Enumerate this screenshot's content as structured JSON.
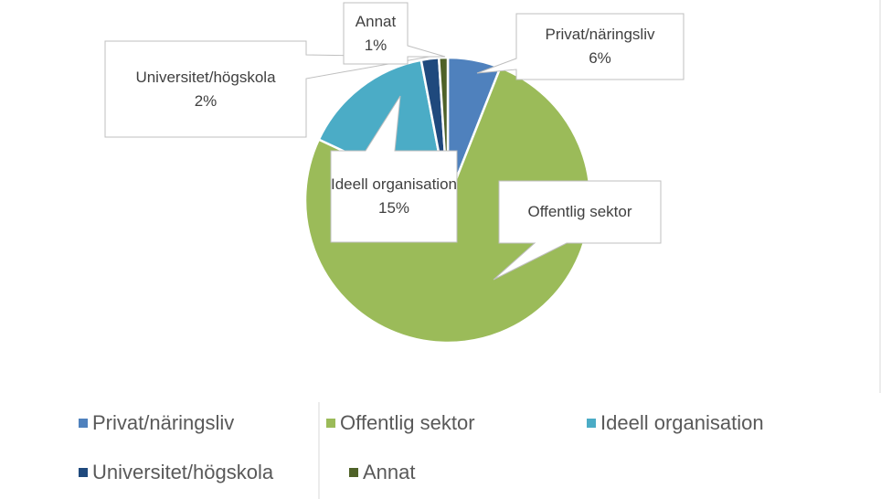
{
  "chart_data": {
    "type": "pie",
    "categories": [
      "Privat/näringsliv",
      "Offentlig sektor",
      "Ideell organisation",
      "Universitet/högskola",
      "Annat"
    ],
    "values": [
      6,
      76,
      15,
      2,
      1
    ],
    "value_labels": [
      "6%",
      null,
      "15%",
      "2%",
      "1%"
    ],
    "colors": [
      "#4f81bd",
      "#9bbb59",
      "#4bacc6",
      "#1f497d",
      "#4f6228"
    ],
    "legend": "bottom"
  }
}
